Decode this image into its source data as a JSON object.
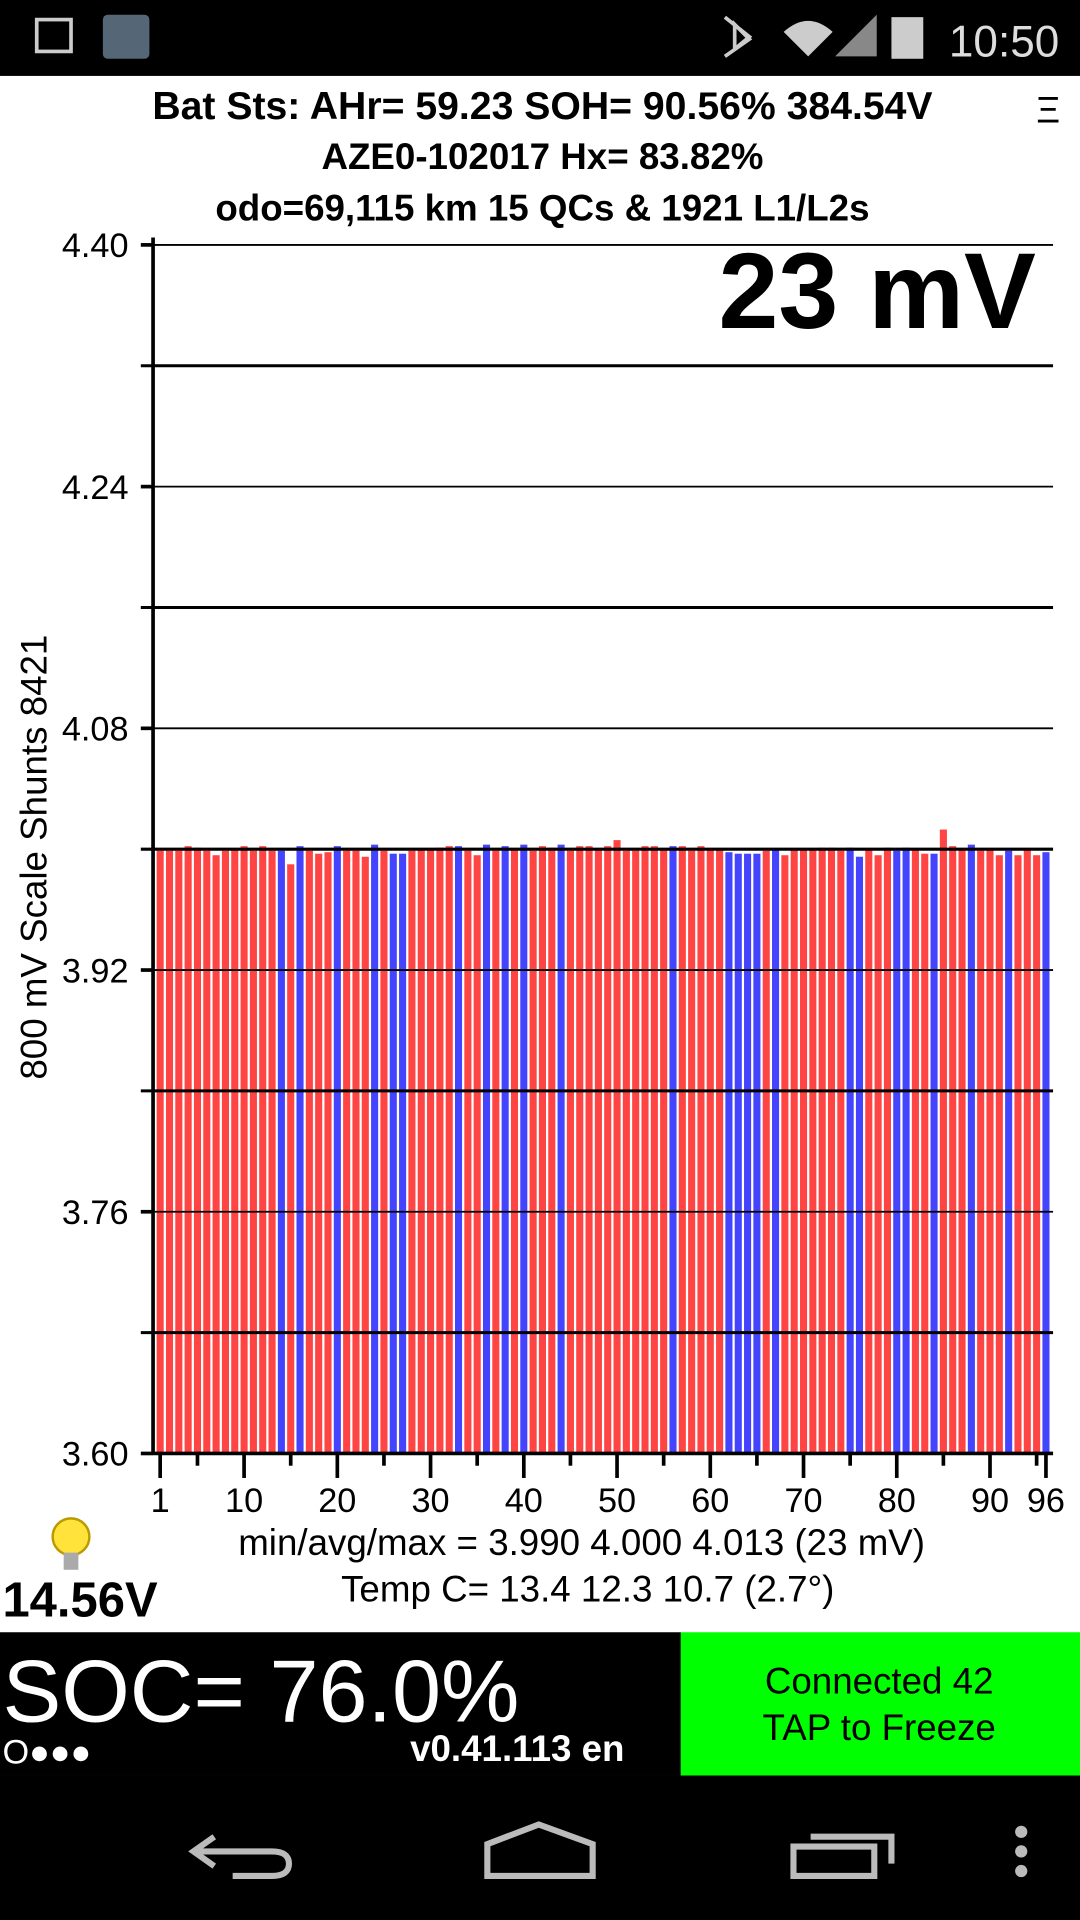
{
  "status_bar": {
    "time": "10:50"
  },
  "header": {
    "line1": "Bat Sts: AHr= 59.23 SOH= 90.56% 384.54V",
    "line2": "AZE0-102017   Hx= 83.82%",
    "line3": "odo=69,115 km 15 QCs & 1921 L1/L2s",
    "menu": "Ξ"
  },
  "readout": {
    "spread": "23 mV",
    "stats": "min/avg/max = 3.990 4.000 4.013  (23 mV)",
    "temps": "Temp C= 13.4  12.3  10.7  (2.7°)",
    "aux_voltage": "14.56V"
  },
  "chart_data": {
    "type": "bar",
    "y_label": "800 mV Scale   Shunts 8421",
    "x": [
      1,
      2,
      3,
      4,
      5,
      6,
      7,
      8,
      9,
      10,
      11,
      12,
      13,
      14,
      15,
      16,
      17,
      18,
      19,
      20,
      21,
      22,
      23,
      24,
      25,
      26,
      27,
      28,
      29,
      30,
      31,
      32,
      33,
      34,
      35,
      36,
      37,
      38,
      39,
      40,
      41,
      42,
      43,
      44,
      45,
      46,
      47,
      48,
      49,
      50,
      51,
      52,
      53,
      54,
      55,
      56,
      57,
      58,
      59,
      60,
      61,
      62,
      63,
      64,
      65,
      66,
      67,
      68,
      69,
      70,
      71,
      72,
      73,
      74,
      75,
      76,
      77,
      78,
      79,
      80,
      81,
      82,
      83,
      84,
      85,
      86,
      87,
      88,
      89,
      90,
      91,
      92,
      93,
      94,
      95,
      96
    ],
    "values": [
      3.999,
      3.999,
      3.999,
      4.002,
      4.001,
      3.999,
      3.996,
      3.999,
      4.0,
      4.002,
      3.999,
      4.002,
      3.999,
      3.999,
      3.99,
      4.002,
      3.999,
      3.997,
      3.998,
      4.002,
      3.999,
      3.999,
      3.995,
      4.003,
      3.999,
      3.997,
      3.997,
      3.999,
      4.0,
      4.0,
      4.001,
      4.002,
      4.002,
      3.999,
      3.996,
      4.003,
      3.999,
      4.002,
      4.0,
      4.003,
      3.999,
      4.002,
      4.001,
      4.003,
      3.999,
      4.002,
      4.002,
      4.0,
      4.002,
      4.006,
      3.999,
      3.999,
      4.002,
      4.002,
      4.0,
      4.002,
      4.002,
      3.999,
      4.002,
      4.0,
      4.0,
      3.998,
      3.997,
      3.997,
      3.997,
      3.999,
      4.0,
      3.996,
      4.0,
      4.0,
      4.0,
      4.001,
      4.001,
      3.999,
      4.001,
      3.995,
      4.0,
      3.996,
      4.001,
      3.999,
      4.001,
      4.0,
      3.997,
      3.997,
      4.013,
      4.002,
      4.0,
      4.003,
      3.999,
      4.0,
      3.996,
      3.999,
      3.996,
      4.0,
      3.996,
      3.998
    ],
    "colors": [
      "#f44",
      "#f44",
      "#f44",
      "#f44",
      "#f44",
      "#f44",
      "#f44",
      "#f44",
      "#f44",
      "#f44",
      "#f44",
      "#f44",
      "#f44",
      "#44f",
      "#f44",
      "#44f",
      "#f44",
      "#f44",
      "#f44",
      "#44f",
      "#f44",
      "#f44",
      "#f44",
      "#44f",
      "#f44",
      "#44f",
      "#44f",
      "#f44",
      "#f44",
      "#f44",
      "#f44",
      "#f44",
      "#44f",
      "#f44",
      "#f44",
      "#44f",
      "#f44",
      "#44f",
      "#f44",
      "#44f",
      "#f44",
      "#f44",
      "#f44",
      "#44f",
      "#f44",
      "#f44",
      "#f44",
      "#f44",
      "#f44",
      "#f44",
      "#f44",
      "#f44",
      "#f44",
      "#f44",
      "#f44",
      "#44f",
      "#f44",
      "#f44",
      "#f44",
      "#f44",
      "#f44",
      "#44f",
      "#44f",
      "#44f",
      "#44f",
      "#f44",
      "#44f",
      "#f44",
      "#f44",
      "#f44",
      "#f44",
      "#f44",
      "#f44",
      "#f44",
      "#44f",
      "#44f",
      "#f44",
      "#f44",
      "#f44",
      "#44f",
      "#44f",
      "#f44",
      "#f44",
      "#44f",
      "#f44",
      "#f44",
      "#f44",
      "#44f",
      "#f44",
      "#f44",
      "#f44",
      "#44f",
      "#f44",
      "#f44",
      "#f44",
      "#44f"
    ],
    "xlim": [
      0.5,
      96.5
    ],
    "xticks": [
      1,
      10,
      20,
      30,
      40,
      50,
      60,
      70,
      80,
      90,
      96
    ],
    "xminor_ticks": [
      5,
      15,
      25,
      35,
      45,
      55,
      65,
      75,
      85,
      95
    ],
    "ylim": [
      3.6,
      4.4
    ],
    "yticks": [
      {
        "value": 3.6,
        "label": "3.60"
      },
      3.76,
      3.92,
      4.08,
      4.24,
      {
        "value": 4.4,
        "label": "4.40"
      }
    ],
    "yminor_ticks": [
      3.68,
      3.84,
      4.0,
      4.16,
      4.32
    ],
    "grid": true
  },
  "footer": {
    "soc": "SOC= 76.0%",
    "dots": "O●●●",
    "version": "v0.41.113 en",
    "button_line1": "Connected 42",
    "button_line2": "TAP to Freeze"
  }
}
